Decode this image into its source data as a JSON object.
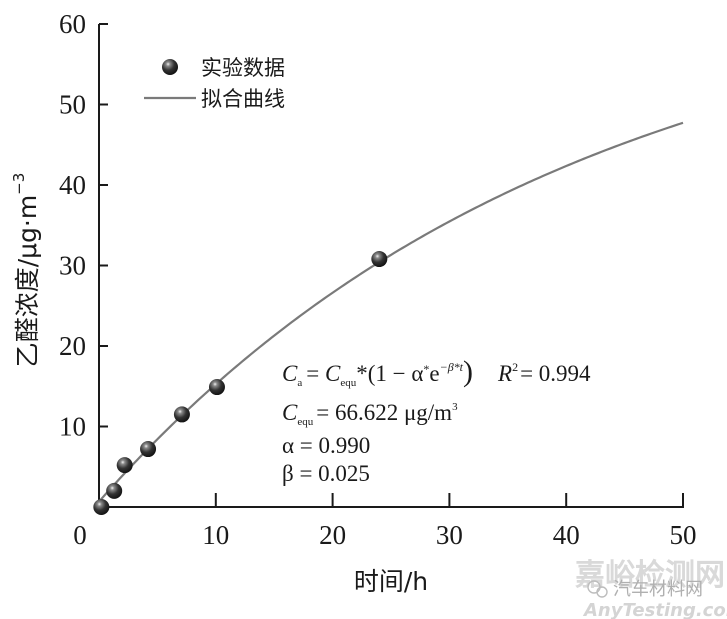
{
  "chart_data": {
    "type": "scatter",
    "title": "",
    "xlabel": "时间/h",
    "ylabel": "乙醛浓度/μg·m",
    "ylabel_superscript": "−3",
    "xlim": [
      0,
      50
    ],
    "ylim": [
      0,
      60
    ],
    "x_ticks": [
      "0",
      "10",
      "20",
      "30",
      "40",
      "50"
    ],
    "y_ticks": [
      "10",
      "20",
      "30",
      "40",
      "50",
      "60"
    ],
    "grid": false,
    "legend_position": "upper-left",
    "series": [
      {
        "name": "实验数据",
        "kind": "scatter",
        "x": [
          0.2,
          1.3,
          2.2,
          4.2,
          7.1,
          10.1,
          24.0
        ],
        "y": [
          0.0,
          2.0,
          5.2,
          7.2,
          11.5,
          14.9,
          30.8
        ]
      },
      {
        "name": "拟合曲线",
        "kind": "line",
        "function": "C = 66.622*(1 - 0.990*exp(-0.025*t))",
        "x_range": [
          0,
          50
        ],
        "color": "#7a7a7a"
      }
    ],
    "annotations": {
      "equation_lhs": "C",
      "equation_lhs_sub": "a",
      "equation_rhs_c": "C",
      "equation_rhs_sub": "equ",
      "equation_body": "*(1 − α",
      "equation_exp_base": "e",
      "equation_exp": "−β*t",
      "r2_label": "R",
      "r2_value": "= 0.994",
      "cequ_label": "C",
      "cequ_sub": "equ",
      "cequ_value": "= 66.622 μg/m",
      "cequ_unit_sup": "3",
      "alpha_line": "α = 0.990",
      "beta_line": "β = 0.025"
    },
    "params": {
      "C_equ": 66.622,
      "alpha": 0.99,
      "beta": 0.025,
      "R2": 0.994
    }
  },
  "legend": {
    "items": [
      {
        "label": "实验数据",
        "marker": "sphere"
      },
      {
        "label": "拟合曲线",
        "marker": "line"
      }
    ]
  },
  "watermark": {
    "line1": "嘉峪检测网",
    "line2": "汽车材料网",
    "line3": "AnyTesting.com"
  },
  "colors": {
    "axis": "#1a1a1a",
    "fit_line": "#7a7a7a",
    "marker": "#2b2b2b"
  }
}
